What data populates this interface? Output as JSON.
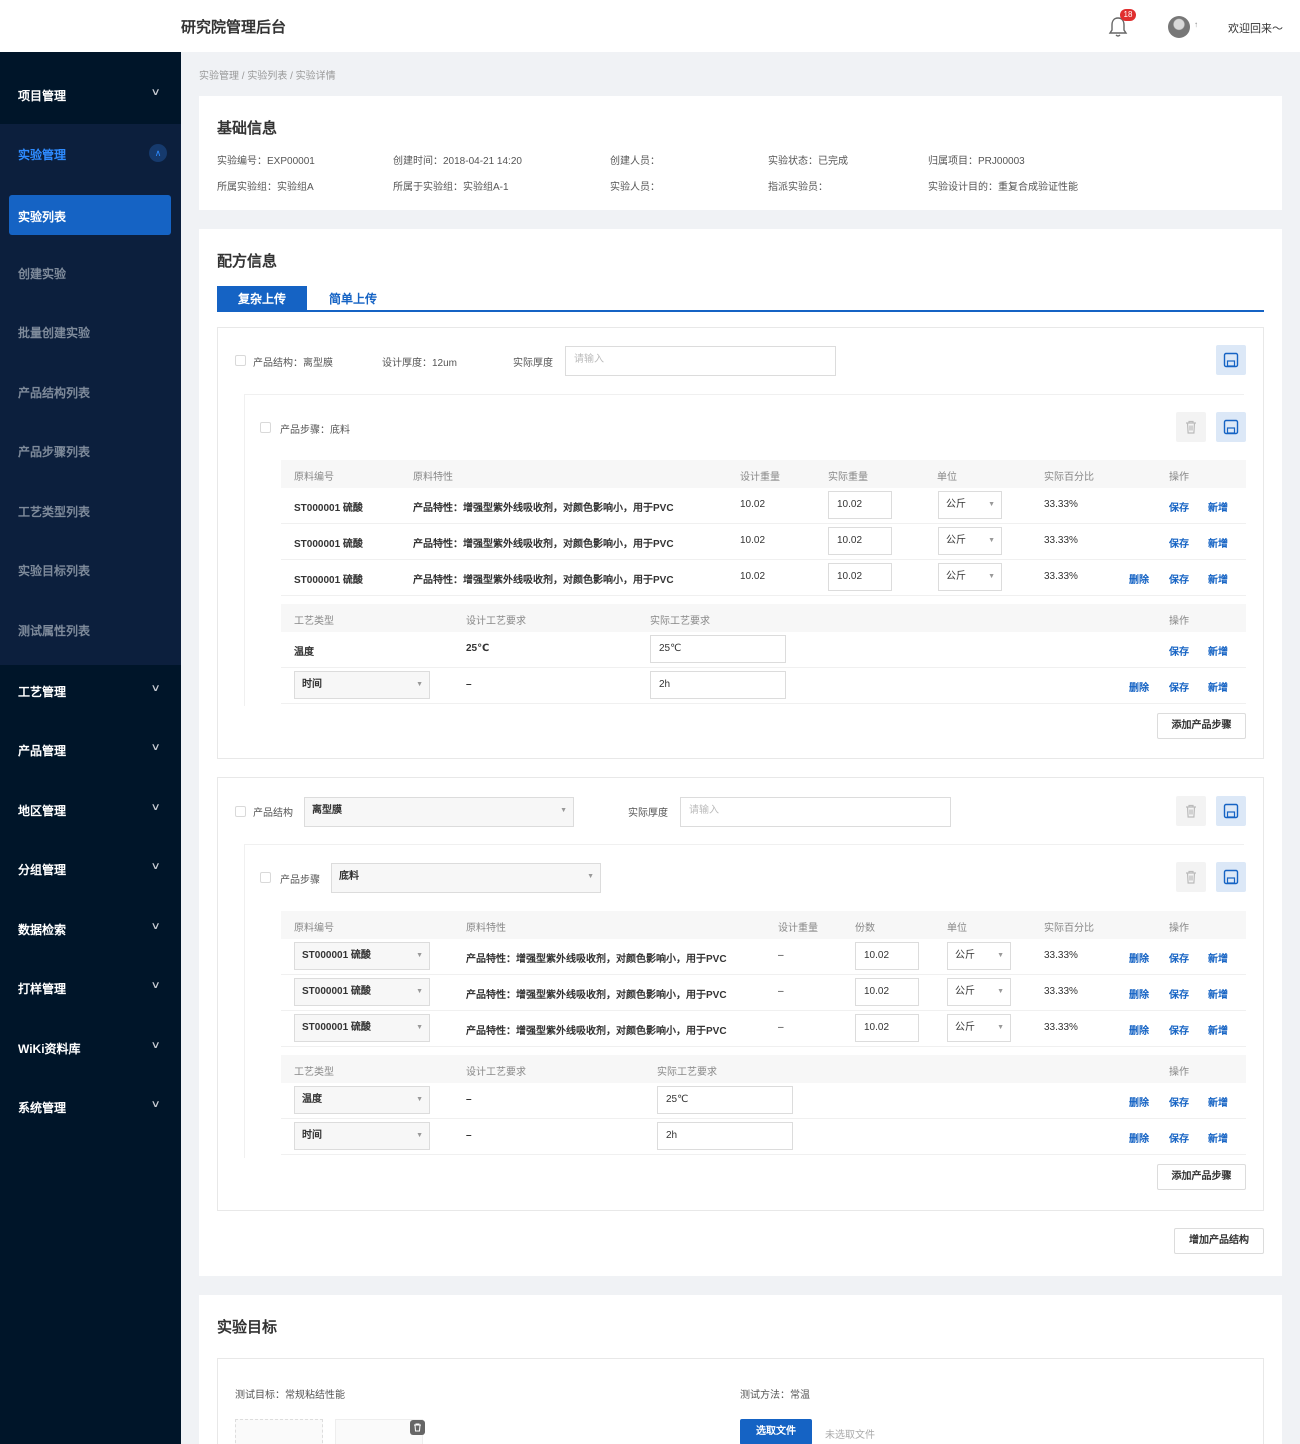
{
  "app": {
    "title": "研究院管理后台",
    "badge": "18",
    "welcome": "欢迎回来～",
    "avatar_caret": "↑"
  },
  "sidebar": {
    "items": [
      {
        "label": "项目管理"
      },
      {
        "label": "实验管理"
      },
      {
        "label": "工艺管理"
      },
      {
        "label": "产品管理"
      },
      {
        "label": "地区管理"
      },
      {
        "label": "分组管理"
      },
      {
        "label": "数据检索"
      },
      {
        "label": "打样管理"
      },
      {
        "label": "WiKi资料库"
      },
      {
        "label": "系统管理"
      }
    ],
    "sub_items": [
      {
        "label": "实验列表"
      },
      {
        "label": "创建实验"
      },
      {
        "label": "批量创建实验"
      },
      {
        "label": "产品结构列表"
      },
      {
        "label": "产品步骤列表"
      },
      {
        "label": "工艺类型列表"
      },
      {
        "label": "实验目标列表"
      },
      {
        "label": "测试属性列表"
      }
    ],
    "chevron": "∨",
    "chevron_up": "∧"
  },
  "breadcrumb": "实验管理 / 实验列表 / 实验详情",
  "basic": {
    "title": "基础信息",
    "fields": [
      "实验编号：EXP00001",
      "创建时间：2018-04-21 14:20",
      "创建人员：",
      "实验状态：已完成",
      "归属项目：PRJ00003",
      "所属实验组：实验组A",
      "所属于实验组：实验组A-1",
      "实验人员：",
      "指派实验员：",
      "实验设计目的：重复合成验证性能"
    ]
  },
  "formula": {
    "title": "配方信息",
    "tabs": [
      "复杂上传",
      "简单上传"
    ],
    "s1": {
      "structure": "产品结构：离型膜",
      "design_thickness": "设计厚度：12um",
      "actual_label": "实际厚度",
      "placeholder": "请输入",
      "step": "产品步骤：底料",
      "headers": [
        "原料编号",
        "原料特性",
        "设计重量",
        "实际重量",
        "单位",
        "实际百分比",
        "操作"
      ],
      "rows": [
        {
          "code": "ST000001 硫酸",
          "prop": "产品特性：增强型紫外线吸收剂，对颜色影响小，用于PVC",
          "design": "10.02",
          "actual": "10.02",
          "unit": "公斤",
          "pct": "33.33%"
        },
        {
          "code": "ST000001 硫酸",
          "prop": "产品特性：增强型紫外线吸收剂，对颜色影响小，用于PVC",
          "design": "10.02",
          "actual": "10.02",
          "unit": "公斤",
          "pct": "33.33%"
        },
        {
          "code": "ST000001 硫酸",
          "prop": "产品特性：增强型紫外线吸收剂，对颜色影响小，用于PVC",
          "design": "10.02",
          "actual": "10.02",
          "unit": "公斤",
          "pct": "33.33%"
        }
      ],
      "proc_headers": [
        "工艺类型",
        "设计工艺要求",
        "实际工艺要求",
        "操作"
      ],
      "proc_rows": [
        {
          "type": "温度",
          "design": "25℃",
          "actual": "25℃"
        },
        {
          "type": "时间",
          "design": "–",
          "actual": "2h"
        }
      ],
      "add_step": "添加产品步骤"
    },
    "s2": {
      "structure_label": "产品结构",
      "structure_value": "离型膜",
      "actual_label": "实际厚度",
      "placeholder": "请输入",
      "step_label": "产品步骤",
      "step_value": "底料",
      "headers": [
        "原料编号",
        "原料特性",
        "设计重量",
        "份数",
        "单位",
        "实际百分比",
        "操作"
      ],
      "rows": [
        {
          "code": "ST000001 硫酸",
          "prop": "产品特性：增强型紫外线吸收剂，对颜色影响小，用于PVC",
          "design": "–",
          "qty": "10.02",
          "unit": "公斤",
          "pct": "33.33%"
        },
        {
          "code": "ST000001 硫酸",
          "prop": "产品特性：增强型紫外线吸收剂，对颜色影响小，用于PVC",
          "design": "–",
          "qty": "10.02",
          "unit": "公斤",
          "pct": "33.33%"
        },
        {
          "code": "ST000001 硫酸",
          "prop": "产品特性：增强型紫外线吸收剂，对颜色影响小，用于PVC",
          "design": "–",
          "qty": "10.02",
          "unit": "公斤",
          "pct": "33.33%"
        }
      ],
      "proc_headers": [
        "工艺类型",
        "设计工艺要求",
        "实际工艺要求",
        "操作"
      ],
      "proc_rows": [
        {
          "type": "温度",
          "design": "–",
          "actual": "25℃"
        },
        {
          "type": "时间",
          "design": "–",
          "actual": "2h"
        }
      ],
      "add_step": "添加产品步骤"
    },
    "add_structure": "增加产品结构",
    "actions": {
      "delete": "删除",
      "save": "保存",
      "add": "新增"
    }
  },
  "target": {
    "title": "实验目标",
    "test_target": "测试目标：常规粘结性能",
    "test_method": "测试方法：常温",
    "choose_file": "选取文件",
    "no_file": "未选取文件"
  },
  "colors": {
    "primary": "#1563c4",
    "sidebar": "#001529",
    "badge": "#e02f2f"
  }
}
